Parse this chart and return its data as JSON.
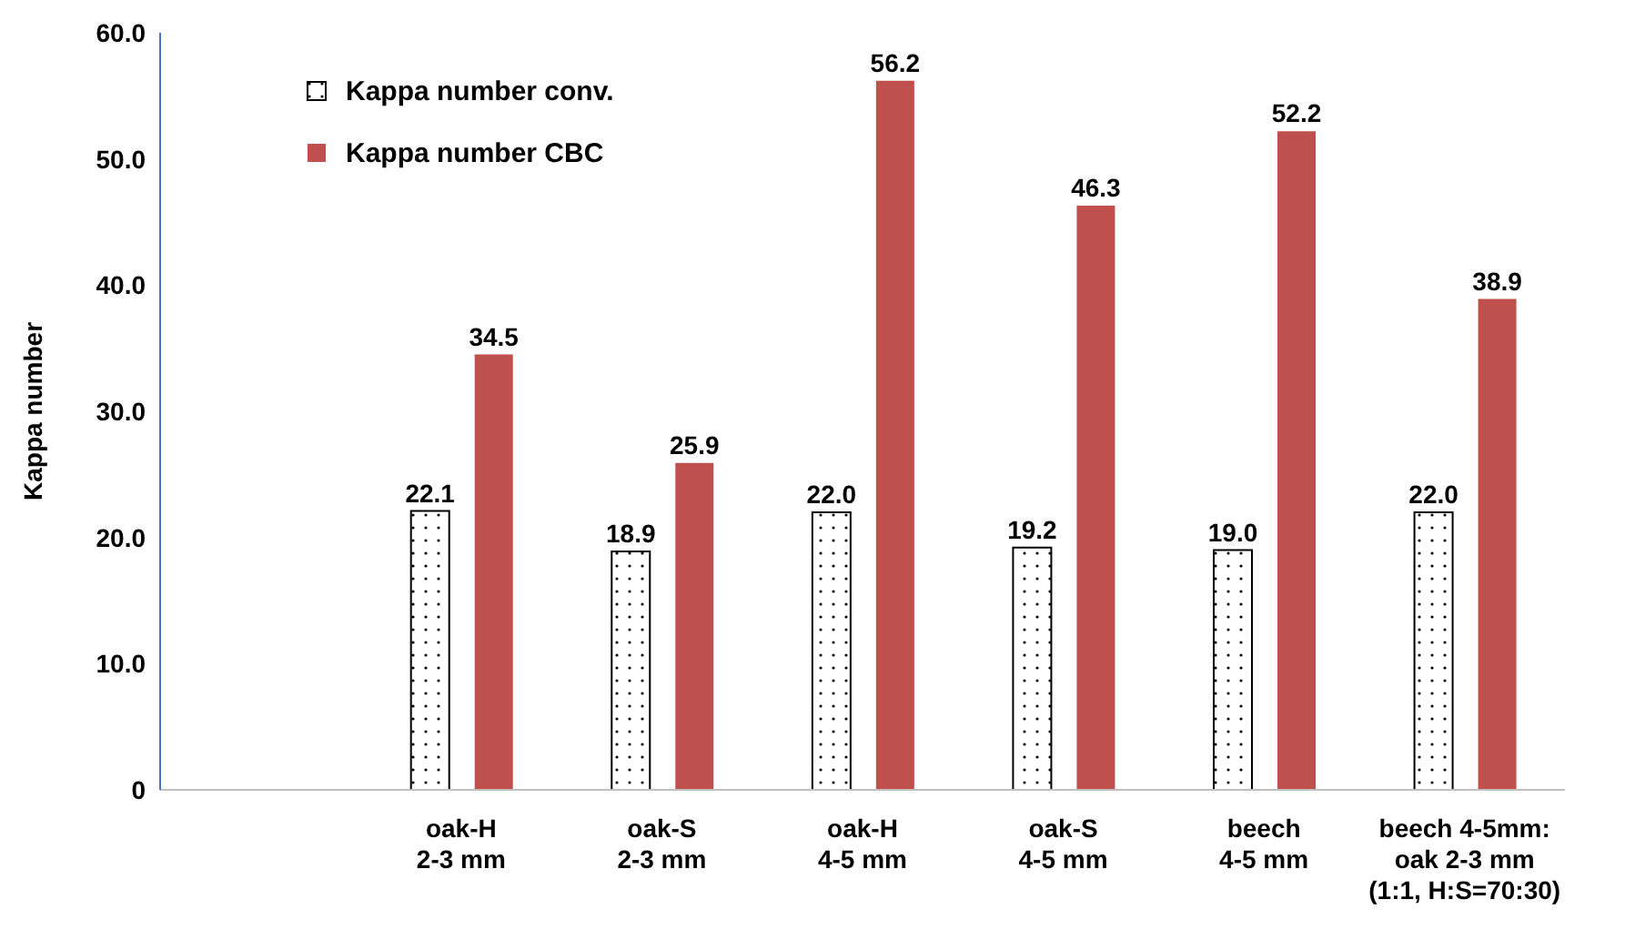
{
  "chart_data": {
    "type": "bar",
    "ylabel": "Kappa number",
    "categories": [
      null,
      "oak-H\n2-3 mm",
      "oak-S\n2-3 mm",
      "oak-H\n4-5 mm",
      "oak-S\n4-5 mm",
      "beech\n4-5 mm",
      "beech 4-5mm:\noak 2-3 mm\n(1:1, H:S=70:30)"
    ],
    "series": [
      {
        "name": "Kappa number conv.",
        "color": "#000000",
        "values": [
          null,
          22.1,
          18.9,
          22.0,
          19.2,
          19.0,
          22.0
        ],
        "value_labels": [
          null,
          "22.1",
          "18.9",
          "22.0",
          "19.2",
          "19.0",
          "22.0"
        ]
      },
      {
        "name": "Kappa number CBC",
        "color": "#c0504d",
        "values": [
          null,
          34.5,
          25.9,
          56.2,
          46.3,
          52.2,
          38.9
        ],
        "value_labels": [
          null,
          "34.5",
          "25.9",
          "56.2",
          "46.3",
          "52.2",
          "38.9"
        ]
      }
    ],
    "ylim": [
      0,
      60
    ],
    "yticks": [
      {
        "value": 0,
        "label": "0"
      },
      {
        "value": 10,
        "label": "10.0"
      },
      {
        "value": 20,
        "label": "20.0"
      },
      {
        "value": 30,
        "label": "30.0"
      },
      {
        "value": 40,
        "label": "40.0"
      },
      {
        "value": 50,
        "label": "50.0"
      },
      {
        "value": 60,
        "label": "60.0"
      }
    ],
    "grid": false,
    "legend": "top left"
  }
}
